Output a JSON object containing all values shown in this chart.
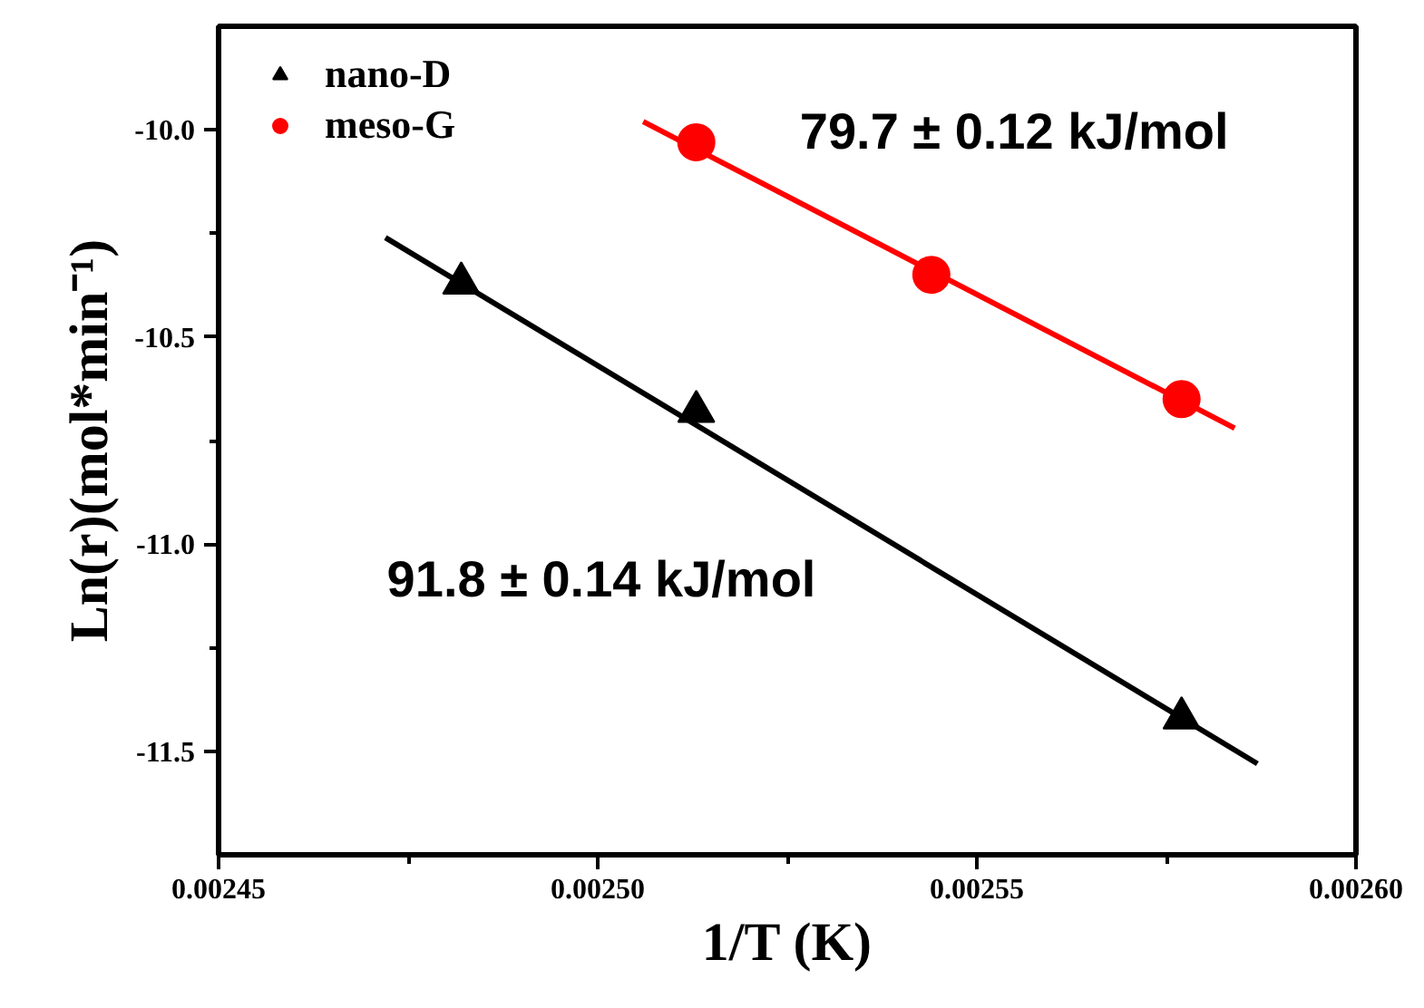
{
  "chart_data": {
    "type": "scatter",
    "xlabel": "1/T (K)",
    "ylabel": "Ln(r)(mol*min⁻¹)",
    "xlim": [
      0.00245,
      0.0026
    ],
    "ylim": [
      -11.75,
      -9.75
    ],
    "xticks": [
      0.00245,
      {
        "value": 0.0025,
        "label": "0.00250"
      },
      0.00255,
      {
        "value": 0.0026,
        "label": "0.00260"
      }
    ],
    "yticks": [
      {
        "value": -10,
        "label": "-10.0"
      },
      {
        "value": -10.5,
        "label": "-10.5"
      },
      {
        "value": -11,
        "label": "-11.0"
      },
      {
        "value": -11.5,
        "label": "-11.5"
      }
    ],
    "grid": false,
    "legend": "top left",
    "series": [
      {
        "name": "nano-D",
        "marker": "triangle",
        "color": "#000000",
        "x": [
          0.002482,
          0.002513,
          0.002577
        ],
        "values": [
          -10.37,
          -10.68,
          -11.42
        ]
      },
      {
        "name": "meso-G",
        "marker": "circle",
        "color": "#ff0000",
        "x": [
          0.002513,
          0.002544,
          0.002577
        ],
        "values": [
          -10.03,
          -10.35,
          -10.65
        ]
      },
      {
        "type": "line",
        "color": "#000000",
        "x": [
          0.002472,
          0.002587
        ],
        "values": [
          -10.26,
          -11.53
        ]
      },
      {
        "type": "line",
        "color": "#ff0000",
        "x": [
          0.002506,
          0.002584
        ],
        "values": [
          -9.98,
          -10.72
        ]
      }
    ],
    "annotations": [
      "91.8 ± 0.14 kJ/mol",
      "79.7 ± 0.12 kJ/mol"
    ]
  }
}
